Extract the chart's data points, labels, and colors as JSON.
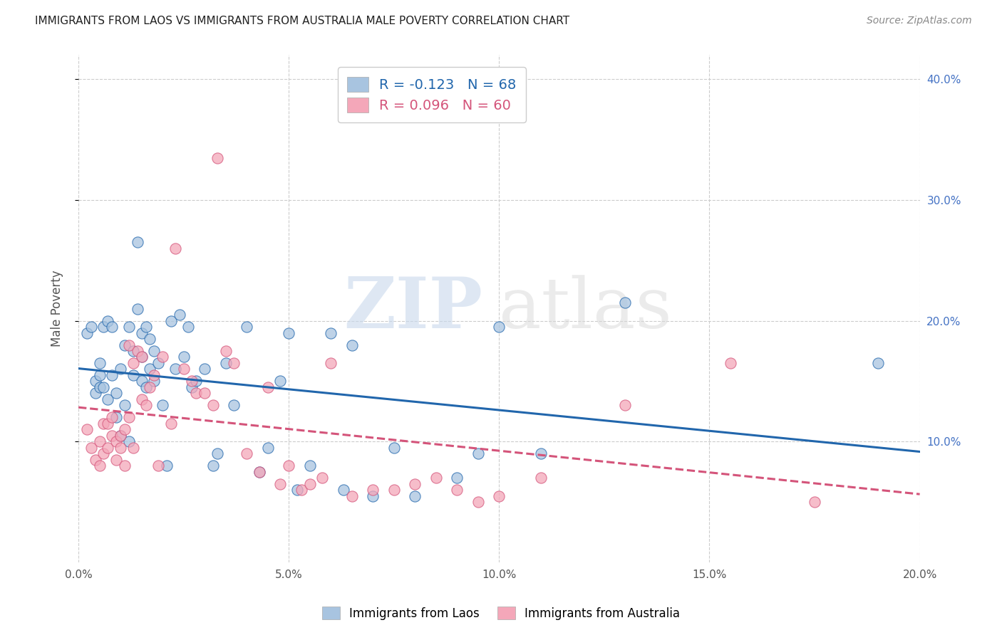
{
  "title": "IMMIGRANTS FROM LAOS VS IMMIGRANTS FROM AUSTRALIA MALE POVERTY CORRELATION CHART",
  "source": "Source: ZipAtlas.com",
  "ylabel": "Male Poverty",
  "xlim": [
    0.0,
    0.2
  ],
  "ylim": [
    0.0,
    0.42
  ],
  "xtick_labels": [
    "0.0%",
    "5.0%",
    "10.0%",
    "15.0%",
    "20.0%"
  ],
  "xtick_vals": [
    0.0,
    0.05,
    0.1,
    0.15,
    0.2
  ],
  "ytick_labels_right": [
    "10.0%",
    "20.0%",
    "30.0%",
    "40.0%"
  ],
  "ytick_vals": [
    0.1,
    0.2,
    0.3,
    0.4
  ],
  "legend_labels": [
    "Immigrants from Laos",
    "Immigrants from Australia"
  ],
  "laos_R": -0.123,
  "laos_N": 68,
  "aus_R": 0.096,
  "aus_N": 60,
  "laos_color": "#a8c4e0",
  "aus_color": "#f4a7b9",
  "laos_line_color": "#2166ac",
  "aus_line_color": "#d4547a",
  "watermark_zip": "ZIP",
  "watermark_atlas": "atlas",
  "background_color": "#ffffff",
  "laos_x": [
    0.002,
    0.003,
    0.004,
    0.004,
    0.005,
    0.005,
    0.005,
    0.006,
    0.006,
    0.007,
    0.007,
    0.008,
    0.008,
    0.009,
    0.009,
    0.01,
    0.01,
    0.011,
    0.011,
    0.012,
    0.012,
    0.013,
    0.013,
    0.014,
    0.014,
    0.015,
    0.015,
    0.015,
    0.016,
    0.016,
    0.017,
    0.017,
    0.018,
    0.018,
    0.019,
    0.02,
    0.021,
    0.022,
    0.023,
    0.024,
    0.025,
    0.026,
    0.027,
    0.028,
    0.03,
    0.032,
    0.033,
    0.035,
    0.037,
    0.04,
    0.043,
    0.045,
    0.048,
    0.05,
    0.052,
    0.055,
    0.06,
    0.063,
    0.065,
    0.07,
    0.075,
    0.08,
    0.09,
    0.095,
    0.1,
    0.11,
    0.13,
    0.19
  ],
  "laos_y": [
    0.19,
    0.195,
    0.15,
    0.14,
    0.165,
    0.155,
    0.145,
    0.195,
    0.145,
    0.135,
    0.2,
    0.195,
    0.155,
    0.14,
    0.12,
    0.16,
    0.105,
    0.18,
    0.13,
    0.195,
    0.1,
    0.175,
    0.155,
    0.265,
    0.21,
    0.19,
    0.17,
    0.15,
    0.195,
    0.145,
    0.16,
    0.185,
    0.15,
    0.175,
    0.165,
    0.13,
    0.08,
    0.2,
    0.16,
    0.205,
    0.17,
    0.195,
    0.145,
    0.15,
    0.16,
    0.08,
    0.09,
    0.165,
    0.13,
    0.195,
    0.075,
    0.095,
    0.15,
    0.19,
    0.06,
    0.08,
    0.19,
    0.06,
    0.18,
    0.055,
    0.095,
    0.055,
    0.07,
    0.09,
    0.195,
    0.09,
    0.215,
    0.165
  ],
  "aus_x": [
    0.002,
    0.003,
    0.004,
    0.005,
    0.005,
    0.006,
    0.006,
    0.007,
    0.007,
    0.008,
    0.008,
    0.009,
    0.009,
    0.01,
    0.01,
    0.011,
    0.011,
    0.012,
    0.012,
    0.013,
    0.013,
    0.014,
    0.015,
    0.015,
    0.016,
    0.017,
    0.018,
    0.019,
    0.02,
    0.022,
    0.023,
    0.025,
    0.027,
    0.028,
    0.03,
    0.032,
    0.033,
    0.035,
    0.037,
    0.04,
    0.043,
    0.045,
    0.048,
    0.05,
    0.053,
    0.055,
    0.058,
    0.06,
    0.065,
    0.07,
    0.075,
    0.08,
    0.085,
    0.09,
    0.095,
    0.1,
    0.11,
    0.13,
    0.155,
    0.175
  ],
  "aus_y": [
    0.11,
    0.095,
    0.085,
    0.1,
    0.08,
    0.09,
    0.115,
    0.115,
    0.095,
    0.12,
    0.105,
    0.1,
    0.085,
    0.105,
    0.095,
    0.11,
    0.08,
    0.18,
    0.12,
    0.165,
    0.095,
    0.175,
    0.17,
    0.135,
    0.13,
    0.145,
    0.155,
    0.08,
    0.17,
    0.115,
    0.26,
    0.16,
    0.15,
    0.14,
    0.14,
    0.13,
    0.335,
    0.175,
    0.165,
    0.09,
    0.075,
    0.145,
    0.065,
    0.08,
    0.06,
    0.065,
    0.07,
    0.165,
    0.055,
    0.06,
    0.06,
    0.065,
    0.07,
    0.06,
    0.05,
    0.055,
    0.07,
    0.13,
    0.165,
    0.05
  ]
}
